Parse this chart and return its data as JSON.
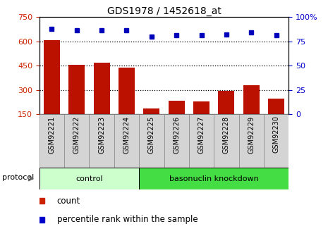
{
  "title": "GDS1978 / 1452618_at",
  "samples": [
    "GSM92221",
    "GSM92222",
    "GSM92223",
    "GSM92224",
    "GSM92225",
    "GSM92226",
    "GSM92227",
    "GSM92228",
    "GSM92229",
    "GSM92230"
  ],
  "counts": [
    608,
    455,
    470,
    438,
    187,
    232,
    228,
    295,
    330,
    245
  ],
  "percentile_ranks": [
    88,
    86,
    86,
    86,
    80,
    81,
    81,
    82,
    84,
    81
  ],
  "groups": [
    {
      "label": "control",
      "start": 0,
      "end": 4,
      "color": "#CCFFCC"
    },
    {
      "label": "basonuclin knockdown",
      "start": 4,
      "end": 10,
      "color": "#44DD44"
    }
  ],
  "left_ylim": [
    150,
    750
  ],
  "left_yticks": [
    150,
    300,
    450,
    600,
    750
  ],
  "right_ylim": [
    0,
    100
  ],
  "right_yticks": [
    0,
    25,
    50,
    75,
    100
  ],
  "bar_color": "#BB1100",
  "dot_color": "#0000BB",
  "tick_label_color_left": "#CC2200",
  "tick_label_color_right": "#0000CC",
  "legend_items": [
    {
      "label": "count",
      "color": "#CC2200"
    },
    {
      "label": "percentile rank within the sample",
      "color": "#0000CC"
    }
  ],
  "protocol_label": "protocol",
  "bar_bottom": 150,
  "xtick_bg": "#D4D4D4",
  "xtick_edge": "#888888"
}
